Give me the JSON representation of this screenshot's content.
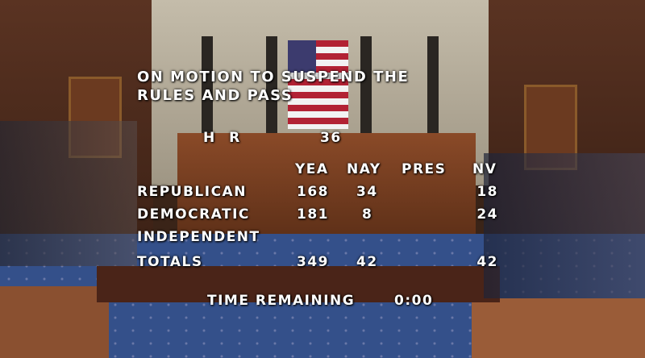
{
  "vote_display": {
    "title_line1": "ON MOTION TO SUSPEND THE",
    "title_line2": "RULES AND PASS",
    "bill_prefix": "H R",
    "bill_number": "36",
    "columns": [
      "YEA",
      "NAY",
      "PRES",
      "NV"
    ],
    "rows": [
      {
        "party": "REPUBLICAN",
        "yea": "168",
        "nay": "34",
        "pres": "",
        "nv": "18"
      },
      {
        "party": "DEMOCRATIC",
        "yea": "181",
        "nay": "8",
        "pres": "",
        "nv": "24"
      },
      {
        "party": "INDEPENDENT",
        "yea": "",
        "nay": "",
        "pres": "",
        "nv": ""
      },
      {
        "party": "TOTALS",
        "yea": "349",
        "nay": "42",
        "pres": "",
        "nv": "42"
      }
    ],
    "time_label": "TIME REMAINING",
    "time_value": "0:00"
  },
  "colors": {
    "wall": "#4a2a1c",
    "stone": "#b9b1a0",
    "carpet": "#34508a",
    "wood": "#7a3f22",
    "text": "#ffffff"
  }
}
